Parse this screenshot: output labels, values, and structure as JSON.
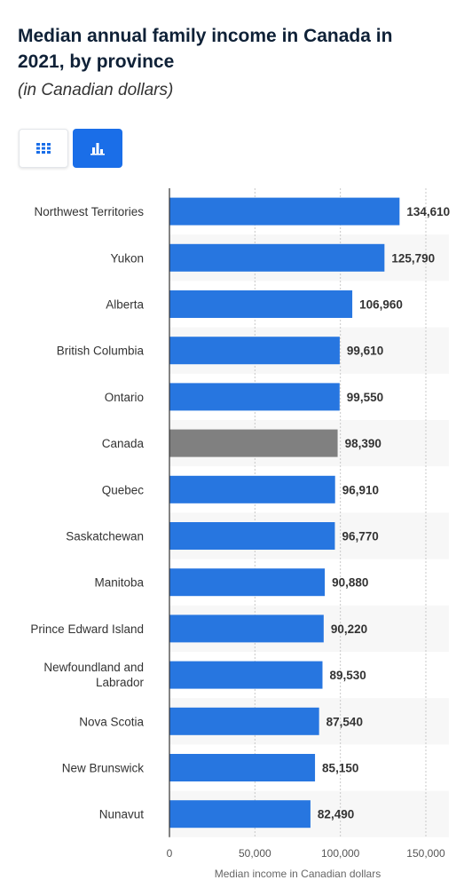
{
  "header": {
    "title": "Median annual family income in Canada in 2021, by province",
    "subtitle": "(in Canadian dollars)"
  },
  "toolbar": {
    "table_view_icon": "grid-icon",
    "chart_view_icon": "bar-chart-icon",
    "active_view": "chart"
  },
  "chart_data": {
    "type": "bar",
    "orientation": "horizontal",
    "categories": [
      "Northwest Territories",
      "Yukon",
      "Alberta",
      "British Columbia",
      "Ontario",
      "Canada",
      "Quebec",
      "Saskatchewan",
      "Manitoba",
      "Prince Edward Island",
      "Newfoundland and Labrador",
      "Nova Scotia",
      "New Brunswick",
      "Nunavut"
    ],
    "values": [
      134610,
      125790,
      106960,
      99610,
      99550,
      98390,
      96910,
      96770,
      90880,
      90220,
      89530,
      87540,
      85150,
      82490
    ],
    "value_labels": [
      "134,610",
      "125,790",
      "106,960",
      "99,610",
      "99,550",
      "98,390",
      "96,910",
      "96,770",
      "90,880",
      "90,220",
      "89,530",
      "87,540",
      "85,150",
      "82,490"
    ],
    "highlight_category": "Canada",
    "xlabel": "Median income in Canadian dollars",
    "xlim": [
      0,
      150000
    ],
    "xticks": [
      0,
      50000,
      100000,
      150000
    ],
    "xtick_labels": [
      "0",
      "50,000",
      "100,000",
      "150,000"
    ],
    "grid": true,
    "colors": {
      "bar": "#2776e0",
      "highlight": "#808080",
      "stripe": "#f7f7f7"
    }
  }
}
